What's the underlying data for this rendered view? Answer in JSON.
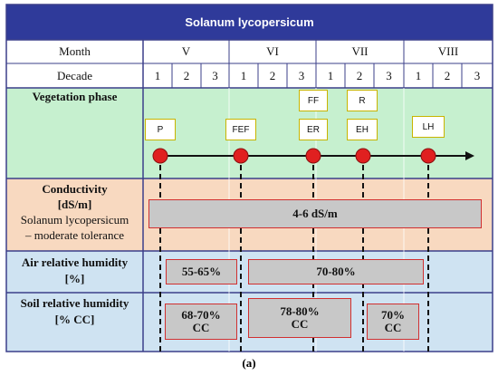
{
  "title": "Solanum lycopersicum",
  "header": {
    "month_label": "Month",
    "decade_label": "Decade",
    "months": [
      "V",
      "VI",
      "VII",
      "VIII"
    ],
    "decades": [
      "1",
      "2",
      "3",
      "1",
      "2",
      "3",
      "1",
      "2",
      "3",
      "1",
      "2",
      "3"
    ]
  },
  "rows": {
    "vegetation": "Vegetation phase",
    "conductivity": {
      "line1": "Conductivity",
      "line2": "[dS/m]",
      "line3": "Solanum lycopersicum",
      "line4": "– moderate tolerance"
    },
    "air": {
      "line1": "Air relative humidity",
      "line2": "[%]"
    },
    "soil": {
      "line1": "Soil relative humidity",
      "line2": "[% CC]"
    }
  },
  "phases": {
    "p": "P",
    "fef": "FEF",
    "ff": "FF",
    "er": "ER",
    "r": "R",
    "eh": "EH",
    "lh": "LH"
  },
  "bars": {
    "conductivity": "4-6 dS/m",
    "air_1": "55-65%",
    "air_2": "70-80%",
    "soil_1_a": "68-70%",
    "soil_1_b": "CC",
    "soil_2_a": "78-80%",
    "soil_2_b": "CC",
    "soil_3_a": "70%",
    "soil_3_b": "CC"
  },
  "caption": "(a)",
  "colors": {
    "title_bg": "#2f3a9a",
    "vegetation_bg": "#c6f0cf",
    "conductivity_bg": "#f8d9c0",
    "humidity_bg": "#cfe3f2",
    "marker": "#e02020",
    "bar_fill": "#c8c8c8",
    "bar_border": "#d13030"
  }
}
